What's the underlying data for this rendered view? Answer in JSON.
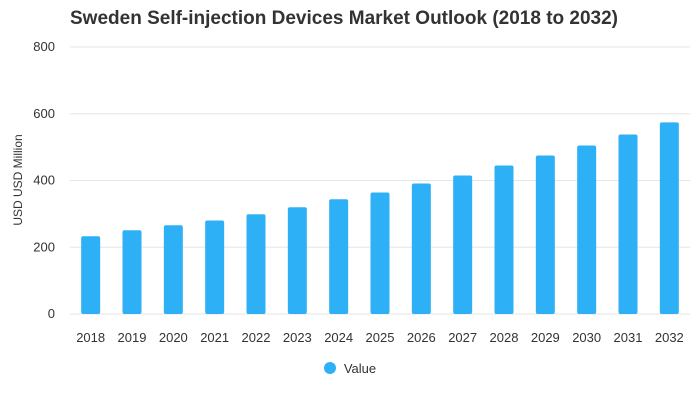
{
  "chart_data": {
    "type": "bar",
    "title": "Sweden Self-injection Devices Market Outlook (2018 to 2032)",
    "xlabel": "",
    "ylabel": "USD USD Million",
    "categories": [
      "2018",
      "2019",
      "2020",
      "2021",
      "2022",
      "2023",
      "2024",
      "2025",
      "2026",
      "2027",
      "2028",
      "2029",
      "2030",
      "2031",
      "2032"
    ],
    "series": [
      {
        "name": "Value",
        "values": [
          233,
          251,
          266,
          280,
          299,
          320,
          344,
          364,
          391,
          415,
          445,
          475,
          505,
          538,
          574
        ]
      }
    ],
    "ylim": [
      0,
      800
    ],
    "yticks": [
      0,
      200,
      400,
      600,
      800
    ],
    "grid": true,
    "legend_position": "bottom-center",
    "colors": {
      "bar": "#2eb0f7",
      "grid": "#e6e6e6",
      "text": "#333333"
    }
  }
}
